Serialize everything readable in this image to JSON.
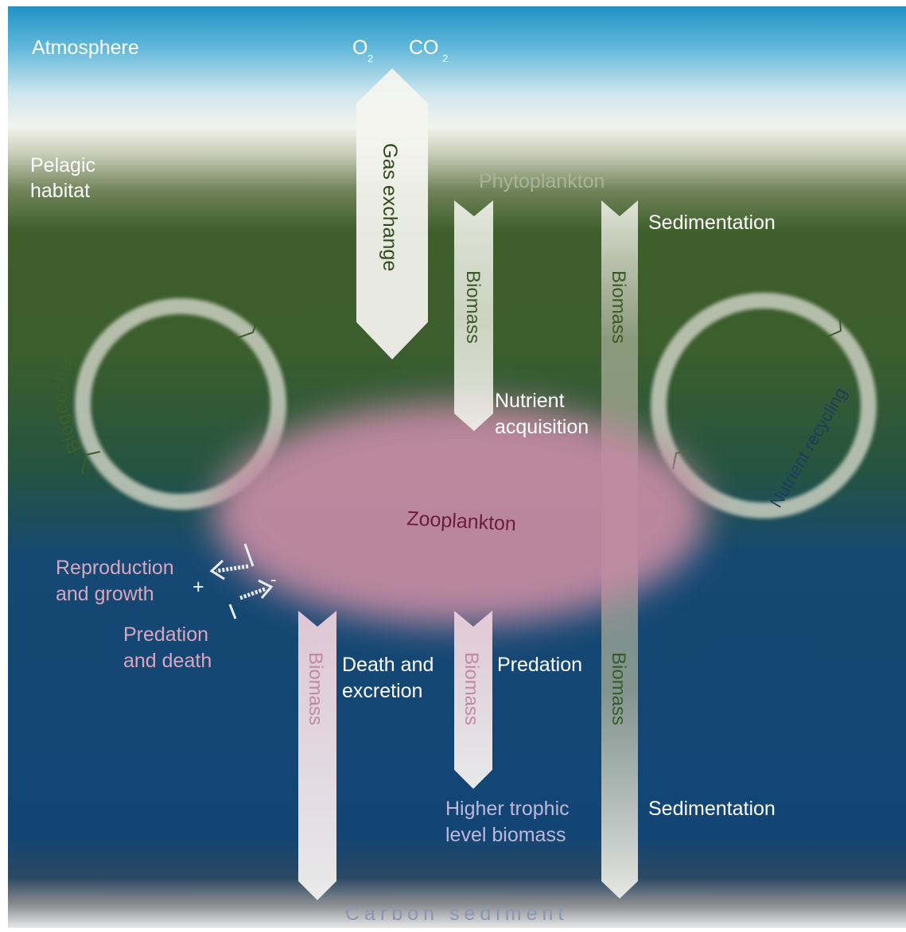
{
  "labels": {
    "atmosphere": "Atmosphere",
    "o2": "O",
    "o2_sub": "2",
    "co2": "CO",
    "co2_sub": "2",
    "pelagic_line1": "Pelagic",
    "pelagic_line2": "habitat",
    "gas_exchange": "Gas exchange",
    "phytoplankton": "Phytoplankton",
    "sedimentation_top": "Sedimentation",
    "biomass_phyto": "Biomass",
    "biomass_sed": "Biomass",
    "biomass_sed_low": "Biomass",
    "biogeochemical_cycles": "Biogeochemical cycles",
    "nutrient_recycling": "Nutrient recycling",
    "nutrient_line1": "Nutrient",
    "nutrient_line2": "acquisition",
    "zooplankton": "Zooplankton",
    "reproduction_line1": "Reproduction",
    "reproduction_line2": "and growth",
    "plus": "+",
    "minus": "-",
    "predation_death_line1": "Predation",
    "predation_death_line2": "and death",
    "biomass_death": "Biomass",
    "death_line1": "Death and",
    "death_line2": "excretion",
    "biomass_pred": "Biomass",
    "predation": "Predation",
    "higher_line1": "Higher trophic",
    "higher_line2": "level biomass",
    "sedimentation_bottom": "Sedimentation",
    "carbon_sediment": "Carbon sediment"
  },
  "colors": {
    "sky": "#29a0cf",
    "haze": "#f2f2ec",
    "surface_green": "#3d5e2a",
    "deep_blue": "#134675",
    "zooplankton_pink": "#c5889f",
    "arrow_white": "#f4f4ee",
    "pink_text": "#d9a6bd",
    "phyto_text": "#a9b59b"
  }
}
